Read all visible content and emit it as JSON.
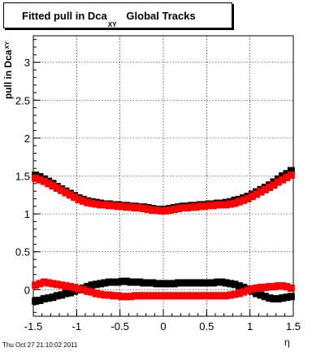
{
  "chart_data": {
    "type": "scatter",
    "title": "Fitted pull in Dca",
    "title_subscript": "XY",
    "title_suffix": "Global Tracks",
    "ylabel": "pull in Dca",
    "ylabel_subscript": "XY",
    "xlabel": "η",
    "xlim": [
      -1.5,
      1.5
    ],
    "ylim": [
      -0.35,
      3.35
    ],
    "x_ticks": [
      "-1.5",
      "-1",
      "-0.5",
      "0",
      "0.5",
      "1",
      "1.5"
    ],
    "y_ticks": [
      "0",
      "0.5",
      "1",
      "1.5",
      "2",
      "2.5",
      "3"
    ],
    "grid": true,
    "x": [
      -1.475,
      -1.425,
      -1.375,
      -1.325,
      -1.275,
      -1.225,
      -1.175,
      -1.125,
      -1.075,
      -1.025,
      -0.975,
      -0.925,
      -0.875,
      -0.825,
      -0.775,
      -0.725,
      -0.675,
      -0.625,
      -0.575,
      -0.525,
      -0.475,
      -0.425,
      -0.375,
      -0.325,
      -0.275,
      -0.225,
      -0.175,
      -0.125,
      -0.075,
      -0.025,
      0.025,
      0.075,
      0.125,
      0.175,
      0.225,
      0.275,
      0.325,
      0.375,
      0.425,
      0.475,
      0.525,
      0.575,
      0.625,
      0.675,
      0.725,
      0.775,
      0.825,
      0.875,
      0.925,
      0.975,
      1.025,
      1.075,
      1.125,
      1.175,
      1.225,
      1.275,
      1.325,
      1.375,
      1.425,
      1.475
    ],
    "series": [
      {
        "color": "#000000",
        "values": [
          1.51,
          1.49,
          1.46,
          1.43,
          1.4,
          1.36,
          1.33,
          1.3,
          1.27,
          1.24,
          1.21,
          1.19,
          1.17,
          1.16,
          1.15,
          1.14,
          1.13,
          1.13,
          1.12,
          1.12,
          1.11,
          1.11,
          1.1,
          1.1,
          1.09,
          1.09,
          1.08,
          1.07,
          1.06,
          1.06,
          1.06,
          1.07,
          1.08,
          1.09,
          1.1,
          1.1,
          1.11,
          1.11,
          1.12,
          1.12,
          1.13,
          1.13,
          1.14,
          1.14,
          1.15,
          1.16,
          1.18,
          1.19,
          1.21,
          1.23,
          1.26,
          1.29,
          1.32,
          1.35,
          1.38,
          1.42,
          1.46,
          1.5,
          1.53,
          1.57
        ]
      },
      {
        "color": "#ff0000",
        "values": [
          1.47,
          1.45,
          1.43,
          1.4,
          1.37,
          1.34,
          1.31,
          1.28,
          1.25,
          1.22,
          1.19,
          1.17,
          1.15,
          1.14,
          1.13,
          1.12,
          1.12,
          1.11,
          1.11,
          1.1,
          1.1,
          1.09,
          1.09,
          1.08,
          1.08,
          1.07,
          1.06,
          1.05,
          1.05,
          1.04,
          1.04,
          1.05,
          1.06,
          1.07,
          1.08,
          1.08,
          1.09,
          1.09,
          1.1,
          1.1,
          1.11,
          1.11,
          1.12,
          1.12,
          1.12,
          1.13,
          1.14,
          1.16,
          1.18,
          1.2,
          1.23,
          1.26,
          1.29,
          1.32,
          1.35,
          1.38,
          1.42,
          1.45,
          1.48,
          1.51
        ]
      },
      {
        "color": "#000000",
        "values": [
          -0.15,
          -0.14,
          -0.12,
          -0.11,
          -0.1,
          -0.08,
          -0.07,
          -0.05,
          -0.04,
          -0.02,
          0.0,
          0.02,
          0.04,
          0.06,
          0.07,
          0.08,
          0.09,
          0.1,
          0.1,
          0.1,
          0.11,
          0.11,
          0.1,
          0.1,
          0.1,
          0.09,
          0.09,
          0.09,
          0.08,
          0.08,
          0.08,
          0.08,
          0.08,
          0.09,
          0.09,
          0.09,
          0.09,
          0.09,
          0.09,
          0.09,
          0.09,
          0.09,
          0.1,
          0.1,
          0.09,
          0.08,
          0.07,
          0.05,
          0.03,
          0.01,
          -0.02,
          -0.05,
          -0.07,
          -0.09,
          -0.11,
          -0.12,
          -0.12,
          -0.11,
          -0.1,
          -0.09
        ]
      },
      {
        "color": "#ff0000",
        "values": [
          0.06,
          0.08,
          0.1,
          0.09,
          0.08,
          0.07,
          0.06,
          0.05,
          0.04,
          0.03,
          0.01,
          0.0,
          -0.02,
          -0.03,
          -0.05,
          -0.06,
          -0.07,
          -0.07,
          -0.08,
          -0.08,
          -0.09,
          -0.09,
          -0.09,
          -0.08,
          -0.08,
          -0.08,
          -0.08,
          -0.08,
          -0.08,
          -0.08,
          -0.08,
          -0.08,
          -0.08,
          -0.08,
          -0.08,
          -0.08,
          -0.08,
          -0.08,
          -0.08,
          -0.08,
          -0.08,
          -0.08,
          -0.08,
          -0.08,
          -0.08,
          -0.07,
          -0.06,
          -0.05,
          -0.03,
          -0.01,
          0.01,
          0.02,
          0.03,
          0.03,
          0.04,
          0.04,
          0.05,
          0.05,
          0.04,
          0.02
        ]
      }
    ],
    "footer": "Thu  Oct 27 21:10:02 2011"
  }
}
